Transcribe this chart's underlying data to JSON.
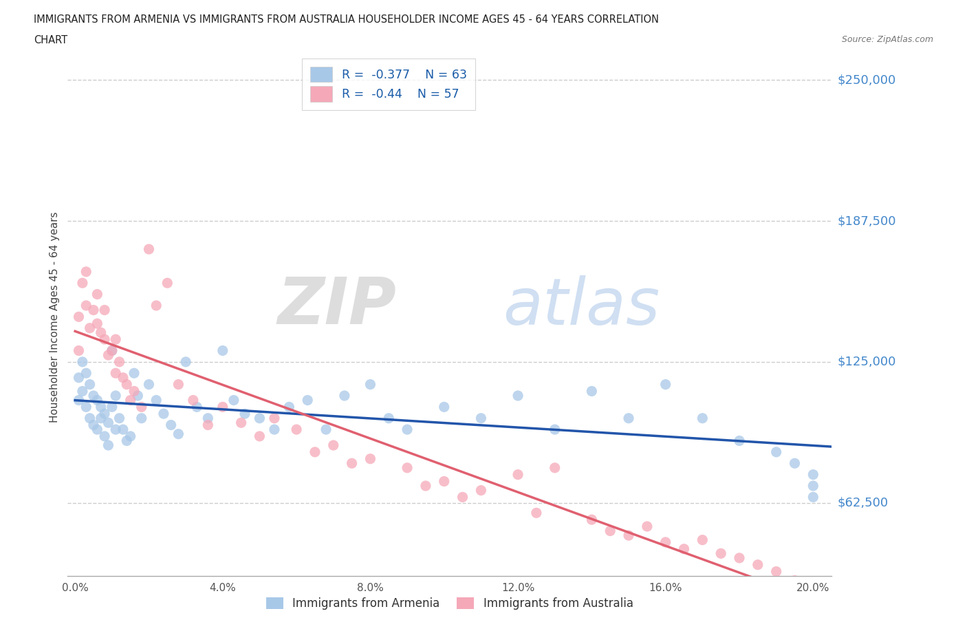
{
  "title_line1": "IMMIGRANTS FROM ARMENIA VS IMMIGRANTS FROM AUSTRALIA HOUSEHOLDER INCOME AGES 45 - 64 YEARS CORRELATION",
  "title_line2": "CHART",
  "source": "Source: ZipAtlas.com",
  "ylabel": "Householder Income Ages 45 - 64 years",
  "watermark_zip": "ZIP",
  "watermark_atlas": "atlas",
  "armenia_R": -0.377,
  "armenia_N": 63,
  "australia_R": -0.44,
  "australia_N": 57,
  "armenia_color": "#a8c8e8",
  "australia_color": "#f5a8b8",
  "armenia_line_color": "#2255aa",
  "australia_line_color": "#e06070",
  "australia_dashed_color": "#f0c0cc",
  "xlim_low": -0.002,
  "xlim_high": 0.205,
  "ylim_low": 30000,
  "ylim_high": 260000,
  "ytick_vals": [
    62500,
    125000,
    187500,
    250000
  ],
  "ytick_labels": [
    "$62,500",
    "$125,000",
    "$187,500",
    "$250,000"
  ],
  "xtick_vals": [
    0.0,
    0.04,
    0.08,
    0.12,
    0.16,
    0.2
  ],
  "xtick_labels": [
    "0.0%",
    "4.0%",
    "8.0%",
    "12.0%",
    "16.0%",
    "20.0%"
  ],
  "grid_color": "#cccccc",
  "background_color": "#ffffff",
  "armenia_scatter_x": [
    0.001,
    0.001,
    0.002,
    0.002,
    0.003,
    0.003,
    0.004,
    0.004,
    0.005,
    0.005,
    0.006,
    0.006,
    0.007,
    0.007,
    0.008,
    0.008,
    0.009,
    0.009,
    0.01,
    0.01,
    0.011,
    0.011,
    0.012,
    0.013,
    0.014,
    0.015,
    0.016,
    0.017,
    0.018,
    0.02,
    0.022,
    0.024,
    0.026,
    0.028,
    0.03,
    0.033,
    0.036,
    0.04,
    0.043,
    0.046,
    0.05,
    0.054,
    0.058,
    0.063,
    0.068,
    0.073,
    0.08,
    0.085,
    0.09,
    0.1,
    0.11,
    0.12,
    0.13,
    0.14,
    0.15,
    0.16,
    0.17,
    0.18,
    0.19,
    0.195,
    0.2,
    0.2,
    0.2
  ],
  "armenia_scatter_y": [
    118000,
    108000,
    125000,
    112000,
    120000,
    105000,
    115000,
    100000,
    110000,
    97000,
    108000,
    95000,
    105000,
    100000,
    102000,
    92000,
    98000,
    88000,
    130000,
    105000,
    110000,
    95000,
    100000,
    95000,
    90000,
    92000,
    120000,
    110000,
    100000,
    115000,
    108000,
    102000,
    97000,
    93000,
    125000,
    105000,
    100000,
    130000,
    108000,
    102000,
    100000,
    95000,
    105000,
    108000,
    95000,
    110000,
    115000,
    100000,
    95000,
    105000,
    100000,
    110000,
    95000,
    112000,
    100000,
    115000,
    100000,
    90000,
    85000,
    80000,
    75000,
    70000,
    65000
  ],
  "australia_scatter_x": [
    0.001,
    0.001,
    0.002,
    0.003,
    0.003,
    0.004,
    0.005,
    0.006,
    0.006,
    0.007,
    0.008,
    0.008,
    0.009,
    0.01,
    0.011,
    0.011,
    0.012,
    0.013,
    0.014,
    0.015,
    0.016,
    0.018,
    0.02,
    0.022,
    0.025,
    0.028,
    0.032,
    0.036,
    0.04,
    0.045,
    0.05,
    0.054,
    0.06,
    0.065,
    0.07,
    0.075,
    0.08,
    0.09,
    0.095,
    0.1,
    0.105,
    0.11,
    0.12,
    0.125,
    0.13,
    0.14,
    0.145,
    0.15,
    0.155,
    0.16,
    0.165,
    0.17,
    0.175,
    0.18,
    0.185,
    0.19,
    0.195
  ],
  "australia_scatter_y": [
    145000,
    130000,
    160000,
    150000,
    165000,
    140000,
    148000,
    142000,
    155000,
    138000,
    135000,
    148000,
    128000,
    130000,
    120000,
    135000,
    125000,
    118000,
    115000,
    108000,
    112000,
    105000,
    175000,
    150000,
    160000,
    115000,
    108000,
    97000,
    105000,
    98000,
    92000,
    100000,
    95000,
    85000,
    88000,
    80000,
    82000,
    78000,
    70000,
    72000,
    65000,
    68000,
    75000,
    58000,
    78000,
    55000,
    50000,
    48000,
    52000,
    45000,
    42000,
    46000,
    40000,
    38000,
    35000,
    32000,
    28000
  ]
}
